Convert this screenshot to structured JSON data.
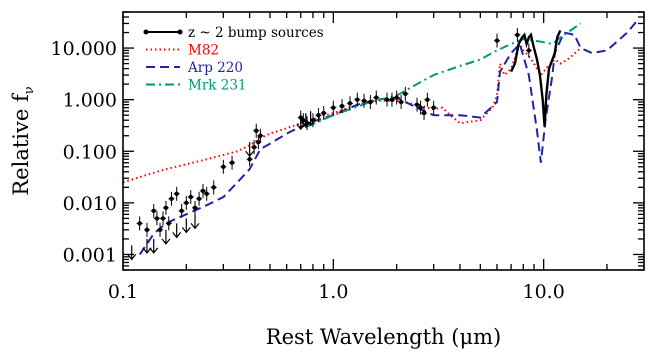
{
  "chart_data": {
    "type": "line",
    "xscale": "log",
    "yscale": "log",
    "xlim": [
      0.1,
      30
    ],
    "ylim": [
      0.0005,
      50
    ],
    "xlabel": "Rest Wavelength (μm)",
    "ylabel": "Relative f",
    "ylabel_sub": "ν",
    "xticks": [
      {
        "value": 0.1,
        "label": "0.1"
      },
      {
        "value": 1.0,
        "label": "1.0"
      },
      {
        "value": 10.0,
        "label": "10.0"
      }
    ],
    "yticks": [
      {
        "value": 0.001,
        "label": "0.001"
      },
      {
        "value": 0.01,
        "label": "0.010"
      },
      {
        "value": 0.1,
        "label": "0.100"
      },
      {
        "value": 1.0,
        "label": "1.000"
      },
      {
        "value": 10.0,
        "label": "10.000"
      }
    ],
    "legend_position": "top-left",
    "series": [
      {
        "name": "M82",
        "color": "#ff0000",
        "style": "dotted",
        "x": [
          0.1,
          0.13,
          0.16,
          0.2,
          0.25,
          0.3,
          0.35,
          0.4,
          0.45,
          0.5,
          0.6,
          0.7,
          0.8,
          1.0,
          1.3,
          1.6,
          2.0,
          2.5,
          3.0,
          3.3,
          3.6,
          4.0,
          5.0,
          5.7,
          6.0,
          6.2,
          6.5,
          7.0,
          7.7,
          8.0,
          8.5,
          9.0,
          9.7,
          10.5,
          11.3,
          12.0,
          13.0,
          15.0
        ],
        "y": [
          0.025,
          0.035,
          0.045,
          0.056,
          0.07,
          0.085,
          0.1,
          0.13,
          0.18,
          0.22,
          0.28,
          0.35,
          0.42,
          0.55,
          0.8,
          0.95,
          0.95,
          0.8,
          0.65,
          0.7,
          0.5,
          0.35,
          0.4,
          0.7,
          1.2,
          5.0,
          3.0,
          4.0,
          12.0,
          9.0,
          7.0,
          5.0,
          3.0,
          4.5,
          6.0,
          5.0,
          6.0,
          10.0
        ]
      },
      {
        "name": "Arp 220",
        "color": "#2222aa",
        "style": "dashed",
        "x": [
          0.12,
          0.14,
          0.16,
          0.18,
          0.2,
          0.25,
          0.3,
          0.35,
          0.4,
          0.45,
          0.5,
          0.6,
          0.7,
          0.8,
          1.0,
          1.3,
          1.6,
          2.0,
          2.5,
          3.0,
          4.0,
          5.0,
          6.0,
          6.2,
          7.0,
          7.7,
          8.5,
          9.3,
          9.7,
          10.2,
          11.0,
          11.3,
          12.5,
          14.0,
          15.0,
          17.0,
          20.0,
          25.0,
          28.0
        ],
        "y": [
          0.001,
          0.0025,
          0.004,
          0.005,
          0.006,
          0.009,
          0.013,
          0.025,
          0.045,
          0.11,
          0.14,
          0.22,
          0.3,
          0.38,
          0.5,
          0.8,
          1.0,
          1.1,
          0.7,
          0.5,
          0.5,
          0.45,
          0.9,
          3.5,
          8.0,
          12.0,
          3.0,
          0.25,
          0.06,
          0.4,
          3.0,
          8.0,
          20.0,
          18.0,
          10.0,
          8.0,
          9.0,
          20.0,
          35.0
        ]
      },
      {
        "name": "Mrk 231",
        "color": "#009977",
        "style": "dashdot",
        "x": [
          0.75,
          1.0,
          1.5,
          2.0,
          2.5,
          3.0,
          4.0,
          5.0,
          6.0,
          7.0,
          8.0,
          9.0,
          10.0,
          11.0,
          12.0,
          15.0
        ],
        "y": [
          0.3,
          0.5,
          0.9,
          1.2,
          2.0,
          3.0,
          4.5,
          6.0,
          9.0,
          12.0,
          15.0,
          14.0,
          13.0,
          12.0,
          16.0,
          30.0
        ]
      },
      {
        "name": "z ~ 2 bump sources",
        "color": "#000000",
        "style": "solid-with-points",
        "spectrum_x": [
          7.0,
          7.3,
          7.6,
          7.9,
          8.1,
          8.3,
          8.5,
          8.7,
          9.0,
          9.3,
          9.6,
          9.9,
          10.1,
          10.3,
          10.6,
          11.0,
          11.3,
          11.6,
          12.0
        ],
        "spectrum_y": [
          3.5,
          5.0,
          12.0,
          16.0,
          18.0,
          12.0,
          16.0,
          18.0,
          10.0,
          6.0,
          3.0,
          1.0,
          0.3,
          1.2,
          4.0,
          6.0,
          8.0,
          16.0,
          22.0
        ],
        "points_x": [
          0.12,
          0.13,
          0.14,
          0.145,
          0.15,
          0.155,
          0.16,
          0.165,
          0.17,
          0.18,
          0.19,
          0.2,
          0.21,
          0.22,
          0.23,
          0.24,
          0.25,
          0.27,
          0.3,
          0.33,
          0.4,
          0.42,
          0.43,
          0.44,
          0.45,
          0.7,
          0.72,
          0.75,
          0.8,
          0.85,
          0.9,
          1.0,
          1.1,
          1.2,
          1.3,
          1.4,
          1.5,
          1.6,
          1.8,
          1.9,
          2.0,
          2.1,
          2.2,
          2.5,
          2.6,
          2.7,
          2.8,
          3.0,
          6.0,
          7.5,
          8.5
        ],
        "points_y": [
          0.004,
          0.003,
          0.007,
          0.005,
          0.003,
          0.005,
          0.008,
          0.004,
          0.012,
          0.015,
          0.007,
          0.01,
          0.013,
          0.008,
          0.012,
          0.017,
          0.015,
          0.02,
          0.05,
          0.06,
          0.07,
          0.12,
          0.25,
          0.15,
          0.2,
          0.45,
          0.4,
          0.35,
          0.4,
          0.5,
          0.55,
          0.7,
          0.75,
          0.85,
          1.0,
          0.95,
          0.9,
          1.1,
          1.0,
          1.0,
          1.1,
          0.9,
          1.3,
          0.8,
          0.7,
          0.55,
          1.0,
          0.7,
          14.0,
          18.0,
          9.0
        ],
        "upper_limits_x": [
          0.11,
          0.13,
          0.14,
          0.16,
          0.18,
          0.2,
          0.22,
          0.4,
          0.7,
          0.74,
          0.78
        ],
        "upper_limits_y": [
          0.0015,
          0.002,
          0.002,
          0.003,
          0.004,
          0.005,
          0.006,
          0.15,
          0.5,
          0.55,
          0.6
        ]
      }
    ]
  }
}
